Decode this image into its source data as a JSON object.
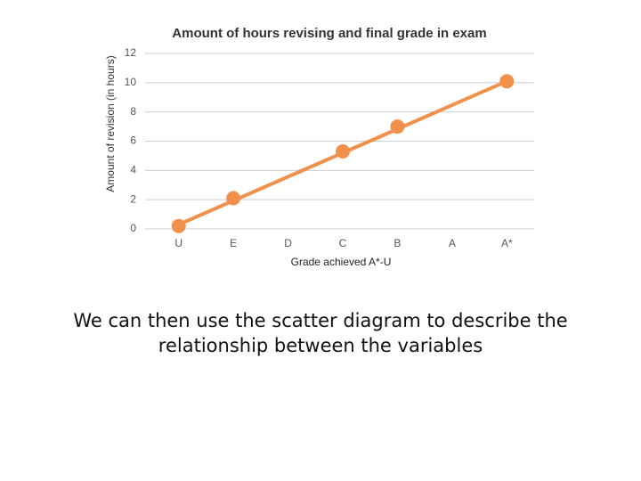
{
  "chart_data": {
    "type": "scatter",
    "title": "Amount of hours revising and final grade in exam",
    "x_label": "Grade achieved A*-U",
    "y_label": "Amount of revision (in hours)",
    "categories": [
      "U",
      "E",
      "D",
      "C",
      "B",
      "A",
      "A*"
    ],
    "series": [
      {
        "color": "#f0904a",
        "values": [
          0.2,
          2.1,
          null,
          5.3,
          7.0,
          null,
          10.1
        ]
      }
    ],
    "trendline": {
      "color": "#f0904a",
      "values": [
        0.3,
        1.93,
        3.57,
        5.2,
        6.83,
        8.47,
        10.1
      ]
    },
    "ylim": [
      0,
      12
    ],
    "yticks": [
      0,
      2,
      4,
      6,
      8,
      10,
      12
    ],
    "grid": true
  },
  "caption": "We can then use the scatter diagram to describe the relationship between the variables"
}
